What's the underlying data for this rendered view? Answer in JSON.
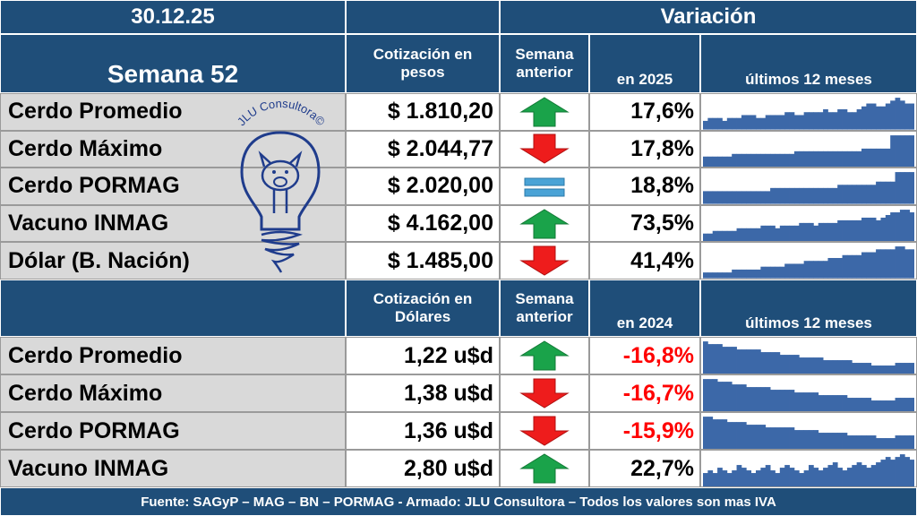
{
  "header": {
    "date": "30.12.25",
    "variacion": "Variación",
    "week": "Semana  52"
  },
  "section1": {
    "col_price_line1": "Cotización en",
    "col_price_line2": "pesos",
    "col_week_line1": "Semana",
    "col_week_line2": "anterior",
    "col_year": "en 2025",
    "col_spark": "últimos 12 meses",
    "rows": [
      {
        "label": "Cerdo Promedio",
        "price": "$ 1.810,20",
        "trend": "up",
        "var": "17,6%",
        "negative": false,
        "spark": [
          3,
          4,
          4,
          4,
          3,
          4,
          4,
          4,
          5,
          5,
          5,
          4,
          4,
          5,
          5,
          5,
          5,
          6,
          6,
          5,
          5,
          6,
          6,
          6,
          6,
          7,
          6,
          6,
          7,
          7,
          6,
          6,
          7,
          8,
          9,
          9,
          8,
          8,
          9,
          10,
          11,
          10,
          9,
          9
        ]
      },
      {
        "label": "Cerdo Máximo",
        "price": "$ 2.044,77",
        "trend": "down",
        "var": "17,8%",
        "negative": false,
        "spark": [
          4,
          4,
          4,
          4,
          4,
          4,
          5,
          5,
          5,
          5,
          5,
          5,
          5,
          5,
          5,
          5,
          5,
          5,
          5,
          6,
          6,
          6,
          6,
          6,
          6,
          6,
          6,
          6,
          6,
          6,
          6,
          6,
          6,
          7,
          7,
          7,
          7,
          7,
          7,
          12,
          12,
          12,
          12,
          12
        ]
      },
      {
        "label": "Cerdo PORMAG",
        "price": "$ 2.020,00",
        "trend": "equal",
        "var": "18,8%",
        "negative": false,
        "spark": [
          4,
          4,
          4,
          4,
          4,
          4,
          4,
          4,
          4,
          4,
          4,
          4,
          4,
          4,
          5,
          5,
          5,
          5,
          5,
          5,
          5,
          5,
          5,
          5,
          5,
          5,
          5,
          5,
          6,
          6,
          6,
          6,
          6,
          6,
          6,
          6,
          7,
          7,
          7,
          7,
          10,
          10,
          10,
          10
        ]
      },
      {
        "label": "Vacuno INMAG",
        "price": "$ 4.162,00",
        "trend": "up",
        "var": "73,5%",
        "negative": false,
        "spark": [
          3,
          3,
          4,
          4,
          4,
          4,
          4,
          5,
          5,
          5,
          5,
          5,
          6,
          6,
          6,
          5,
          6,
          6,
          6,
          6,
          7,
          7,
          7,
          6,
          7,
          7,
          7,
          7,
          8,
          8,
          8,
          8,
          8,
          9,
          9,
          9,
          8,
          9,
          10,
          11,
          11,
          12,
          12,
          11
        ]
      },
      {
        "label": "Dólar (B. Nación)",
        "price": "$ 1.485,00",
        "trend": "down",
        "var": "41,4%",
        "negative": false,
        "spark": [
          2,
          2,
          2,
          2,
          2,
          2,
          3,
          3,
          3,
          3,
          3,
          3,
          4,
          4,
          4,
          4,
          4,
          5,
          5,
          5,
          5,
          6,
          6,
          6,
          6,
          6,
          7,
          7,
          7,
          8,
          8,
          8,
          8,
          9,
          9,
          9,
          10,
          10,
          10,
          10,
          11,
          11,
          10,
          10
        ]
      }
    ]
  },
  "section2": {
    "col_price_line1": "Cotización en",
    "col_price_line2": "Dólares",
    "col_week_line1": "Semana",
    "col_week_line2": "anterior",
    "col_year": "en 2024",
    "col_spark": "últimos 12 meses",
    "rows": [
      {
        "label": "Cerdo Promedio",
        "price": "1,22 u$d",
        "trend": "up",
        "var": "-16,8%",
        "negative": true,
        "spark": [
          12,
          11,
          11,
          11,
          10,
          10,
          10,
          9,
          9,
          9,
          9,
          9,
          8,
          8,
          8,
          8,
          7,
          7,
          7,
          7,
          6,
          6,
          6,
          6,
          6,
          5,
          5,
          5,
          5,
          5,
          5,
          4,
          4,
          4,
          4,
          3,
          3,
          3,
          3,
          3,
          4,
          4,
          4,
          4
        ]
      },
      {
        "label": "Cerdo Máximo",
        "price": "1,38 u$d",
        "trend": "down",
        "var": "-16,7%",
        "negative": true,
        "spark": [
          12,
          12,
          12,
          11,
          11,
          11,
          10,
          10,
          10,
          9,
          9,
          9,
          9,
          9,
          8,
          8,
          8,
          8,
          8,
          7,
          7,
          7,
          7,
          7,
          6,
          6,
          6,
          6,
          6,
          6,
          5,
          5,
          5,
          5,
          5,
          4,
          4,
          4,
          4,
          4,
          5,
          5,
          5,
          5
        ]
      },
      {
        "label": "Cerdo PORMAG",
        "price": "1,36 u$d",
        "trend": "down",
        "var": "-15,9%",
        "negative": true,
        "spark": [
          12,
          12,
          11,
          11,
          11,
          10,
          10,
          10,
          10,
          9,
          9,
          9,
          9,
          8,
          8,
          8,
          8,
          8,
          8,
          7,
          7,
          7,
          7,
          7,
          6,
          6,
          6,
          6,
          6,
          6,
          5,
          5,
          5,
          5,
          5,
          5,
          4,
          4,
          4,
          4,
          5,
          5,
          5,
          5
        ]
      },
      {
        "label": "Vacuno INMAG",
        "price": "2,80 u$d",
        "trend": "up",
        "var": "22,7%",
        "negative": false,
        "spark": [
          5,
          6,
          5,
          7,
          6,
          5,
          6,
          8,
          7,
          6,
          5,
          6,
          7,
          8,
          6,
          5,
          7,
          8,
          7,
          6,
          5,
          6,
          8,
          7,
          6,
          7,
          8,
          9,
          7,
          6,
          7,
          8,
          9,
          8,
          7,
          8,
          9,
          10,
          11,
          10,
          11,
          12,
          11,
          10
        ]
      }
    ]
  },
  "logo": {
    "text": "JLU Consultora©"
  },
  "footer": {
    "text": "Fuente: SAGyP – MAG – BN – PORMAG - Armado: JLU Consultora – Todos los valores son mas IVA"
  },
  "colors": {
    "header_bg": "#1f4e79",
    "label_bg": "#d9d9d9",
    "spark": "#3c68a8",
    "arrow_up": "#1aa34a",
    "arrow_down": "#ee1c1c",
    "equal": "#4aa3d6",
    "negative": "#ff0000",
    "logo": "#1f3c8c"
  }
}
